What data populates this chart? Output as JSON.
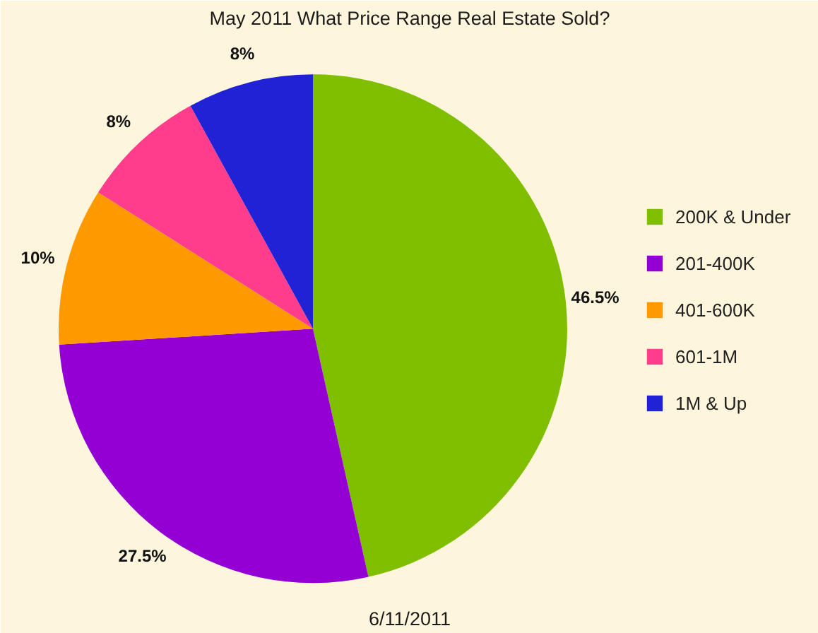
{
  "chart_data": {
    "type": "pie",
    "title": "May 2011 What Price Range Real Estate Sold?",
    "categories": [
      "200K & Under",
      "201-400K",
      "401-600K",
      "601-1M",
      "1M & Up"
    ],
    "values": [
      46.5,
      27.5,
      10,
      8,
      8
    ],
    "colors": [
      "#7fbf00",
      "#9400d3",
      "#ff9900",
      "#ff3d8c",
      "#2121d6"
    ],
    "value_labels": [
      "46.5%",
      "27.5%",
      "10%",
      "8%",
      "8%"
    ],
    "legend": "right",
    "annotations": [
      "6/11/2011"
    ]
  }
}
